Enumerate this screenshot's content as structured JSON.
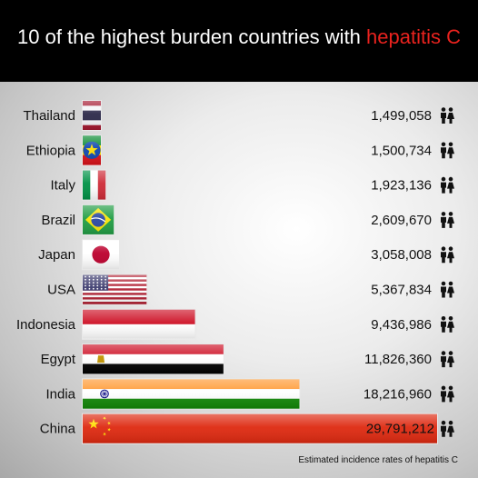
{
  "header": {
    "title_prefix": "10 of the highest burden countries with ",
    "title_highlight": "hepatitis C"
  },
  "colors": {
    "header_bg": "#000000",
    "highlight": "#e8221e"
  },
  "icons": {
    "value_icon": "people-icon"
  },
  "chart_data": {
    "type": "bar",
    "orientation": "horizontal",
    "title": "10 of the highest burden countries with hepatitis C",
    "categories": [
      "Thailand",
      "Ethiopia",
      "Italy",
      "Brazil",
      "Japan",
      "USA",
      "Indonesia",
      "Egypt",
      "India",
      "China"
    ],
    "values": [
      1499058,
      1500734,
      1923136,
      2609670,
      3058008,
      5367834,
      9436986,
      11826360,
      18216960,
      29791212
    ],
    "value_labels": [
      "1,499,058",
      "1,500,734",
      "1,923,136",
      "2,609,670",
      "3,058,008",
      "5,367,834",
      "9,436,986",
      "11,826,360",
      "18,216,960",
      "29,791,212"
    ],
    "bar_fill": [
      "flag-thailand",
      "flag-ethiopia",
      "flag-italy",
      "flag-brazil",
      "flag-japan",
      "flag-usa",
      "flag-indonesia",
      "flag-egypt",
      "flag-india",
      "flag-china"
    ],
    "xlabel": "",
    "ylabel": "",
    "grid": false,
    "legend": "none"
  },
  "footnote": "Estimated incidence rates of hepatitis C"
}
